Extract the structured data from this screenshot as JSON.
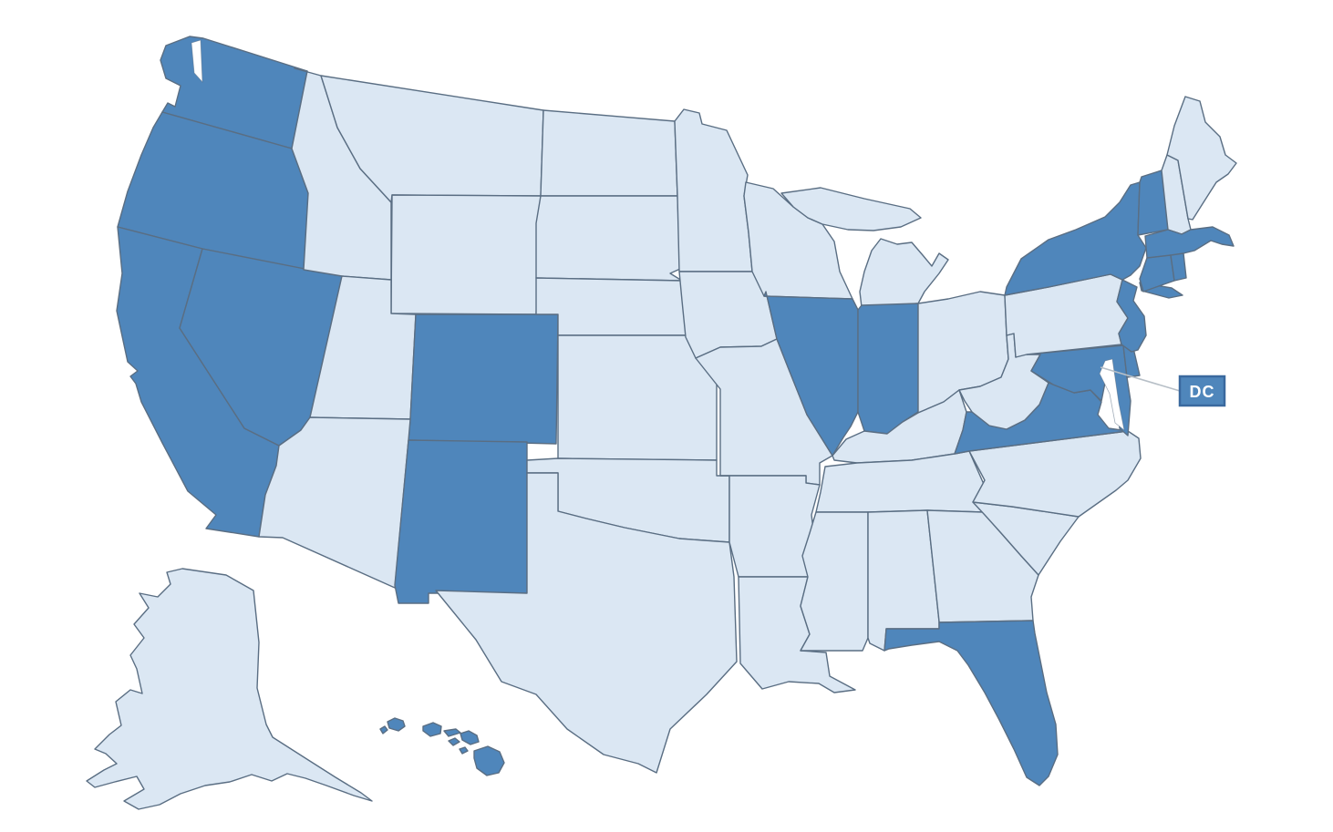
{
  "map": {
    "type": "us-states-choropleth",
    "background": "#ffffff",
    "colors": {
      "highlighted_fill": "#4f86bb",
      "default_fill": "#dbe7f3",
      "border_stroke": "#5a6e83",
      "water_fill": "#ffffff",
      "callout_line": "#b7bfc7",
      "label_box_fill": "#4f86bb",
      "label_box_border": "#3a699e",
      "label_text_color": "#ffffff"
    },
    "dc_callout": {
      "label": "DC"
    },
    "highlighted_states": [
      "Washington",
      "Oregon",
      "California",
      "Nevada",
      "Colorado",
      "New Mexico",
      "Hawaii",
      "Illinois",
      "Indiana",
      "Florida",
      "Virginia",
      "Maryland",
      "Delaware",
      "New Jersey",
      "New York",
      "Vermont",
      "Massachusetts",
      "Connecticut",
      "Rhode Island",
      "District of Columbia"
    ],
    "states": [
      {
        "abbr": "WA",
        "name": "Washington",
        "highlighted": true
      },
      {
        "abbr": "OR",
        "name": "Oregon",
        "highlighted": true
      },
      {
        "abbr": "CA",
        "name": "California",
        "highlighted": true
      },
      {
        "abbr": "NV",
        "name": "Nevada",
        "highlighted": true
      },
      {
        "abbr": "ID",
        "name": "Idaho",
        "highlighted": false
      },
      {
        "abbr": "MT",
        "name": "Montana",
        "highlighted": false
      },
      {
        "abbr": "WY",
        "name": "Wyoming",
        "highlighted": false
      },
      {
        "abbr": "UT",
        "name": "Utah",
        "highlighted": false
      },
      {
        "abbr": "CO",
        "name": "Colorado",
        "highlighted": true
      },
      {
        "abbr": "AZ",
        "name": "Arizona",
        "highlighted": false
      },
      {
        "abbr": "NM",
        "name": "New Mexico",
        "highlighted": true
      },
      {
        "abbr": "ND",
        "name": "North Dakota",
        "highlighted": false
      },
      {
        "abbr": "SD",
        "name": "South Dakota",
        "highlighted": false
      },
      {
        "abbr": "NE",
        "name": "Nebraska",
        "highlighted": false
      },
      {
        "abbr": "KS",
        "name": "Kansas",
        "highlighted": false
      },
      {
        "abbr": "OK",
        "name": "Oklahoma",
        "highlighted": false
      },
      {
        "abbr": "TX",
        "name": "Texas",
        "highlighted": false
      },
      {
        "abbr": "MN",
        "name": "Minnesota",
        "highlighted": false
      },
      {
        "abbr": "IA",
        "name": "Iowa",
        "highlighted": false
      },
      {
        "abbr": "MO",
        "name": "Missouri",
        "highlighted": false
      },
      {
        "abbr": "AR",
        "name": "Arkansas",
        "highlighted": false
      },
      {
        "abbr": "LA",
        "name": "Louisiana",
        "highlighted": false
      },
      {
        "abbr": "WI",
        "name": "Wisconsin",
        "highlighted": false
      },
      {
        "abbr": "MI",
        "name": "Michigan",
        "highlighted": false
      },
      {
        "abbr": "IL",
        "name": "Illinois",
        "highlighted": true
      },
      {
        "abbr": "IN",
        "name": "Indiana",
        "highlighted": true
      },
      {
        "abbr": "OH",
        "name": "Ohio",
        "highlighted": false
      },
      {
        "abbr": "KY",
        "name": "Kentucky",
        "highlighted": false
      },
      {
        "abbr": "TN",
        "name": "Tennessee",
        "highlighted": false
      },
      {
        "abbr": "MS",
        "name": "Mississippi",
        "highlighted": false
      },
      {
        "abbr": "AL",
        "name": "Alabama",
        "highlighted": false
      },
      {
        "abbr": "GA",
        "name": "Georgia",
        "highlighted": false
      },
      {
        "abbr": "FL",
        "name": "Florida",
        "highlighted": true
      },
      {
        "abbr": "SC",
        "name": "South Carolina",
        "highlighted": false
      },
      {
        "abbr": "NC",
        "name": "North Carolina",
        "highlighted": false
      },
      {
        "abbr": "VA",
        "name": "Virginia",
        "highlighted": true
      },
      {
        "abbr": "WV",
        "name": "West Virginia",
        "highlighted": false
      },
      {
        "abbr": "MD",
        "name": "Maryland",
        "highlighted": true
      },
      {
        "abbr": "DE",
        "name": "Delaware",
        "highlighted": true
      },
      {
        "abbr": "PA",
        "name": "Pennsylvania",
        "highlighted": false
      },
      {
        "abbr": "NJ",
        "name": "New Jersey",
        "highlighted": true
      },
      {
        "abbr": "NY",
        "name": "New York",
        "highlighted": true
      },
      {
        "abbr": "VT",
        "name": "Vermont",
        "highlighted": true
      },
      {
        "abbr": "NH",
        "name": "New Hampshire",
        "highlighted": false
      },
      {
        "abbr": "ME",
        "name": "Maine",
        "highlighted": false
      },
      {
        "abbr": "MA",
        "name": "Massachusetts",
        "highlighted": true
      },
      {
        "abbr": "CT",
        "name": "Connecticut",
        "highlighted": true
      },
      {
        "abbr": "RI",
        "name": "Rhode Island",
        "highlighted": true
      },
      {
        "abbr": "AK",
        "name": "Alaska",
        "highlighted": false
      },
      {
        "abbr": "HI",
        "name": "Hawaii",
        "highlighted": true
      },
      {
        "abbr": "DC",
        "name": "District of Columbia",
        "highlighted": true
      }
    ]
  }
}
